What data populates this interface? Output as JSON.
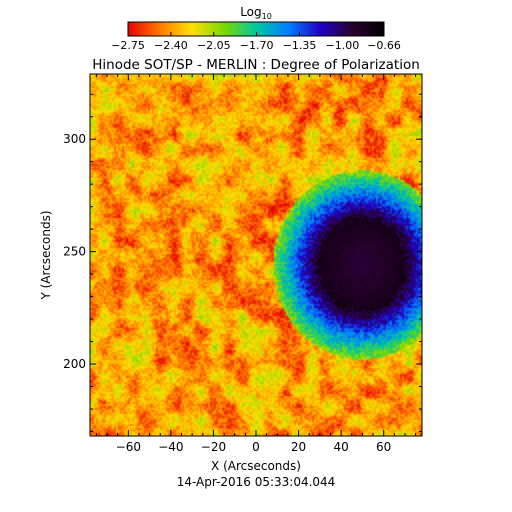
{
  "chart_data": {
    "type": "heatmap",
    "title": "Hinode SOT/SP - MERLIN : Degree of Polarization",
    "subtitle": "14-Apr-2016 05:33:04.044",
    "xlabel": "X (Arcseconds)",
    "ylabel": "Y (Arcseconds)",
    "xlim": [
      -78,
      78
    ],
    "ylim": [
      168,
      329
    ],
    "xticks": [
      -60,
      -40,
      -20,
      0,
      20,
      40,
      60
    ],
    "xtick_labels": [
      "−60",
      "−40",
      "−20",
      "0",
      "20",
      "40",
      "60"
    ],
    "yticks": [
      200,
      250,
      300
    ],
    "ytick_labels": [
      "200",
      "250",
      "300"
    ],
    "colorbar": {
      "label_base": "Log",
      "label_sub": "10",
      "range": [
        -2.75,
        -0.66
      ],
      "tick_values": [
        -2.75,
        -2.4,
        -2.05,
        -1.7,
        -1.35,
        -1.0,
        -0.66
      ],
      "tick_labels": [
        "−2.75",
        "−2.40",
        "−2.05",
        "−1.70",
        "−1.35",
        "−1.00",
        "−0.66"
      ],
      "colormap": [
        "#e80000",
        "#ff7a00",
        "#ffe000",
        "#7ad800",
        "#00c8a0",
        "#0080ff",
        "#2000c8",
        "#2a0030",
        "#000000"
      ]
    },
    "features": {
      "sunspot_center": [
        50,
        244
      ],
      "sunspot_umbra_radius": 20,
      "sunspot_penumbra_radius": 30,
      "sunspot_value": -0.8,
      "background_value": -2.5
    }
  }
}
